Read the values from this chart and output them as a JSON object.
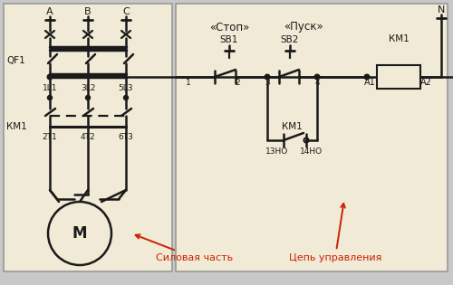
{
  "bg_color": "#f0ead6",
  "border_color": "#999999",
  "line_color": "#1a1a1a",
  "text_color": "#1a1a1a",
  "red_color": "#cc2200",
  "fig_bg": "#c8c8c8",
  "title_stop": "«Стоп»",
  "title_start": "«Пуск»",
  "label_silova": "Силовая часть",
  "label_cep": "Цепь управления",
  "label_QF1": "QF1",
  "label_KM1_left": "КМ1",
  "label_KM1_right": "КМ1",
  "label_N": "N",
  "label_A": "A",
  "label_B": "B",
  "label_C": "C",
  "label_1L1": "1L1",
  "label_3L2": "3L2",
  "label_5L3": "5L3",
  "label_2T1": "2T1",
  "label_4T2": "4T2",
  "label_6T3": "6T3",
  "label_M": "M",
  "label_SB1": "SB1",
  "label_SB2": "SB2",
  "label_A1": "A1",
  "label_A2": "A2",
  "label_13NO": "13НО",
  "label_14NO": "14НО"
}
